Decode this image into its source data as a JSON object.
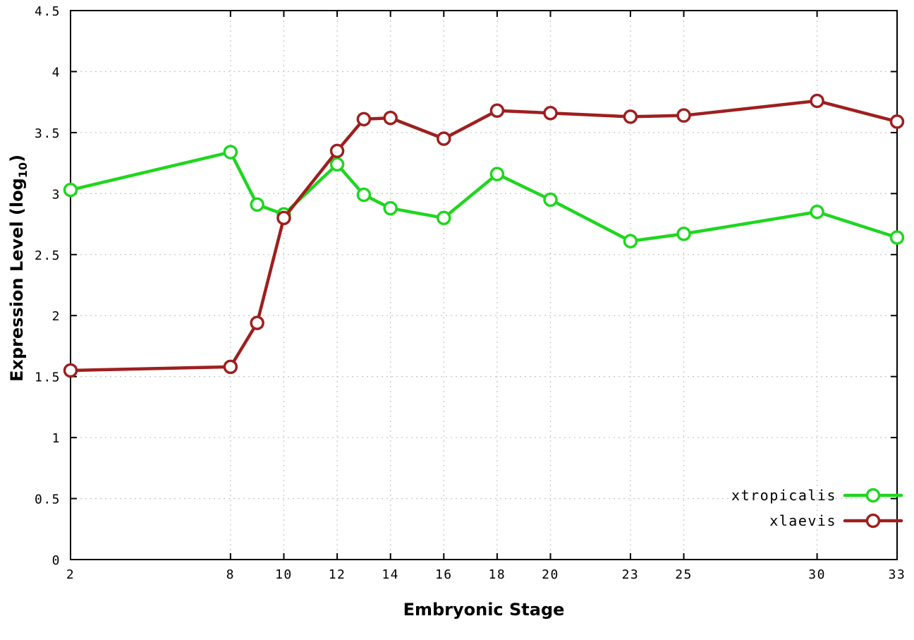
{
  "chart_data": {
    "type": "line",
    "title": "",
    "xlabel": "Embryonic Stage",
    "ylabel": "Expression Level (log10)",
    "ylabel_prefix": "Expression Level (log",
    "ylabel_sub": "10",
    "ylabel_suffix": ")",
    "x": [
      2,
      8,
      9,
      10,
      12,
      13,
      14,
      16,
      18,
      20,
      23,
      25,
      30,
      33
    ],
    "xlim": [
      2,
      33
    ],
    "ylim": [
      0,
      4.5
    ],
    "xticks": [
      2,
      8,
      10,
      12,
      14,
      16,
      18,
      20,
      23,
      25,
      30,
      33
    ],
    "xtick_labels": [
      "2",
      "8",
      "10",
      "12",
      "14",
      "16",
      "18",
      "20",
      "23",
      "25",
      "30",
      "33"
    ],
    "yticks": [
      0,
      0.5,
      1,
      1.5,
      2,
      2.5,
      3,
      3.5,
      4,
      4.5
    ],
    "ytick_labels": [
      "0",
      "0.5",
      "1",
      "1.5",
      "2",
      "2.5",
      "3",
      "3.5",
      "4",
      "4.5"
    ],
    "grid": true,
    "legend_position": "bottom-right",
    "series": [
      {
        "name": "xtropicalis",
        "color": "#1fd61f",
        "values": [
          3.03,
          3.34,
          2.91,
          2.83,
          3.24,
          2.99,
          2.88,
          2.8,
          3.16,
          2.95,
          2.61,
          2.67,
          2.85,
          2.64
        ]
      },
      {
        "name": "xlaevis",
        "color": "#9e1f1f",
        "values": [
          1.55,
          1.58,
          1.94,
          2.8,
          3.35,
          3.61,
          3.62,
          3.45,
          3.68,
          3.66,
          3.63,
          3.64,
          3.76,
          3.59
        ]
      }
    ],
    "colors": {
      "grid": "#c8c8c8",
      "border": "#000000",
      "marker_fill": "#ffffff",
      "text": "#000000"
    }
  }
}
